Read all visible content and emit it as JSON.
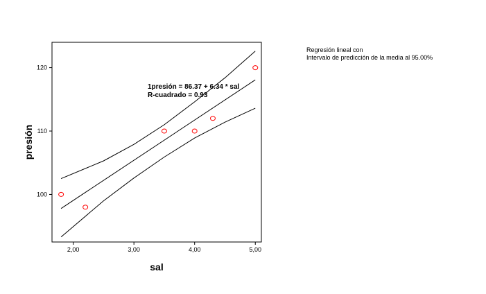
{
  "chart_data": {
    "type": "scatter",
    "xlabel": "sal",
    "ylabel": "presión",
    "xlim": [
      1.65,
      5.1
    ],
    "ylim": [
      92.5,
      124
    ],
    "xticks": [
      2,
      3,
      4,
      5
    ],
    "xtick_labels": [
      "2,00",
      "3,00",
      "4,00",
      "5,00"
    ],
    "yticks": [
      100,
      110,
      120
    ],
    "ytick_labels": [
      "100",
      "110",
      "120"
    ],
    "points": [
      {
        "x": 1.8,
        "y": 100
      },
      {
        "x": 2.2,
        "y": 98
      },
      {
        "x": 3.5,
        "y": 110
      },
      {
        "x": 4.0,
        "y": 110
      },
      {
        "x": 4.3,
        "y": 112
      },
      {
        "x": 5.0,
        "y": 120
      }
    ],
    "fit": {
      "intercept": 86.37,
      "slope": 6.34,
      "x_range": [
        1.8,
        5.0
      ]
    },
    "upper_band": [
      {
        "x": 1.8,
        "y": 102.5
      },
      {
        "x": 2.5,
        "y": 105.3
      },
      {
        "x": 3.0,
        "y": 107.9
      },
      {
        "x": 3.5,
        "y": 111.0
      },
      {
        "x": 4.0,
        "y": 114.6
      },
      {
        "x": 4.5,
        "y": 118.4
      },
      {
        "x": 5.0,
        "y": 122.6
      }
    ],
    "lower_band": [
      {
        "x": 1.8,
        "y": 93.3
      },
      {
        "x": 2.5,
        "y": 99.0
      },
      {
        "x": 3.0,
        "y": 102.6
      },
      {
        "x": 3.5,
        "y": 105.9
      },
      {
        "x": 4.0,
        "y": 108.9
      },
      {
        "x": 4.5,
        "y": 111.4
      },
      {
        "x": 5.0,
        "y": 113.6
      }
    ],
    "annotations": [
      "1presión = 86.37 + 6.34 * sal",
      "R-cuadrado = 0.93"
    ],
    "legend": [
      "Regresión lineal con",
      "Intervalo de predicción de la media al 95.00%"
    ],
    "grid": false,
    "legend_position": "top-right",
    "colors": {
      "points": "#ff0000",
      "lines": "#000000",
      "frame": "#000000"
    }
  }
}
